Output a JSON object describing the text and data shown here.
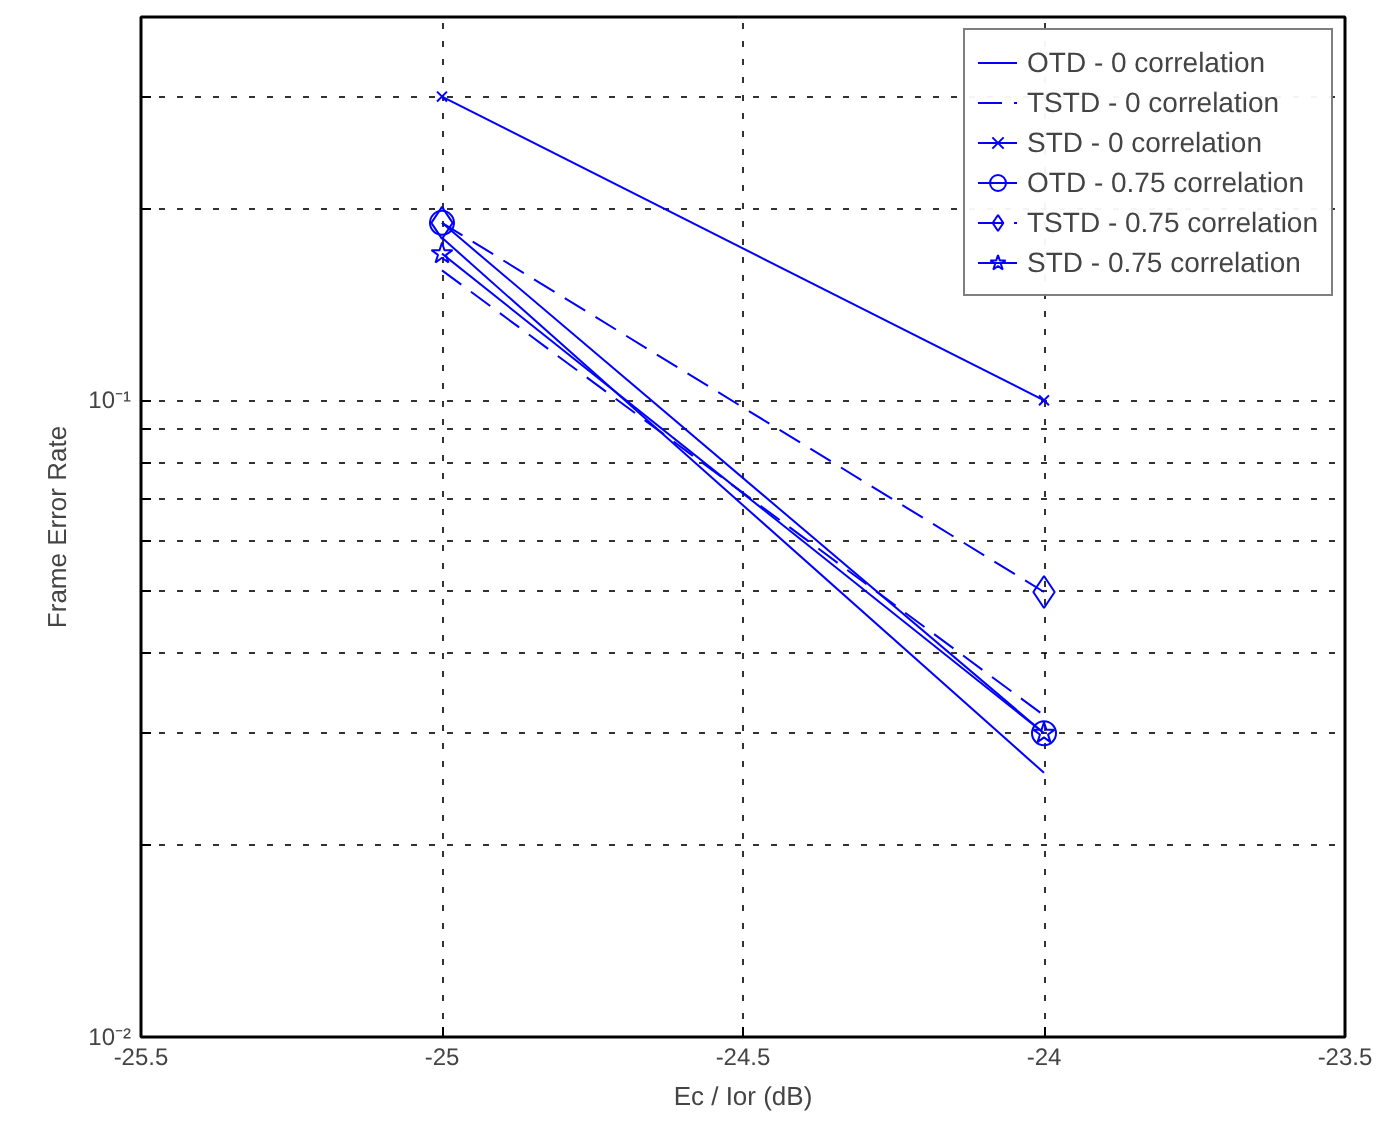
{
  "chart_data": {
    "type": "line",
    "xlabel": "Ec / Ior (dB)",
    "ylabel": "Frame Error Rate",
    "x": [
      -25,
      -24
    ],
    "series": [
      {
        "name": "OTD - 0 correlation",
        "color": "#0000ff",
        "values": [
          0.18,
          0.026
        ],
        "marker": "none",
        "line_style": "solid"
      },
      {
        "name": "TSTD - 0 correlation",
        "color": "#0000ff",
        "values": [
          0.16,
          0.032
        ],
        "marker": "none",
        "line_style": "dashed"
      },
      {
        "name": "STD - 0 correlation",
        "color": "#0000ff",
        "values": [
          0.3,
          0.1
        ],
        "marker": "cross",
        "line_style": "solid"
      },
      {
        "name": "OTD - 0.75 correlation",
        "color": "#0000ff",
        "values": [
          0.19,
          0.03
        ],
        "marker": "circle",
        "line_style": "solid"
      },
      {
        "name": "TSTD - 0.75 correlation",
        "color": "#0000ff",
        "values": [
          0.19,
          0.05
        ],
        "marker": "diamond",
        "line_style": "dashed"
      },
      {
        "name": "STD - 0.75 correlation",
        "color": "#0000ff",
        "values": [
          0.17,
          0.03
        ],
        "marker": "star",
        "line_style": "solid"
      }
    ],
    "log": "y",
    "xlim": [
      -25.5,
      -23.5
    ],
    "xticks": [
      -25.5,
      -25,
      -24.5,
      -24,
      -23.5
    ],
    "ylim": [
      0.01,
      0.4
    ],
    "yticks": [
      {
        "value": 0.01,
        "label": "10⁻²"
      },
      {
        "value": 0.02,
        "label": null
      },
      {
        "value": 0.03,
        "label": null
      },
      {
        "value": 0.04,
        "label": null
      },
      {
        "value": 0.05,
        "label": null
      },
      {
        "value": 0.06,
        "label": null
      },
      {
        "value": 0.07,
        "label": null
      },
      {
        "value": 0.08,
        "label": null
      },
      {
        "value": 0.09,
        "label": null
      },
      {
        "value": 0.1,
        "label": "10⁻¹"
      },
      {
        "value": 0.2,
        "label": null
      },
      {
        "value": 0.3,
        "label": null
      }
    ],
    "grid": true,
    "legend": "top right"
  }
}
